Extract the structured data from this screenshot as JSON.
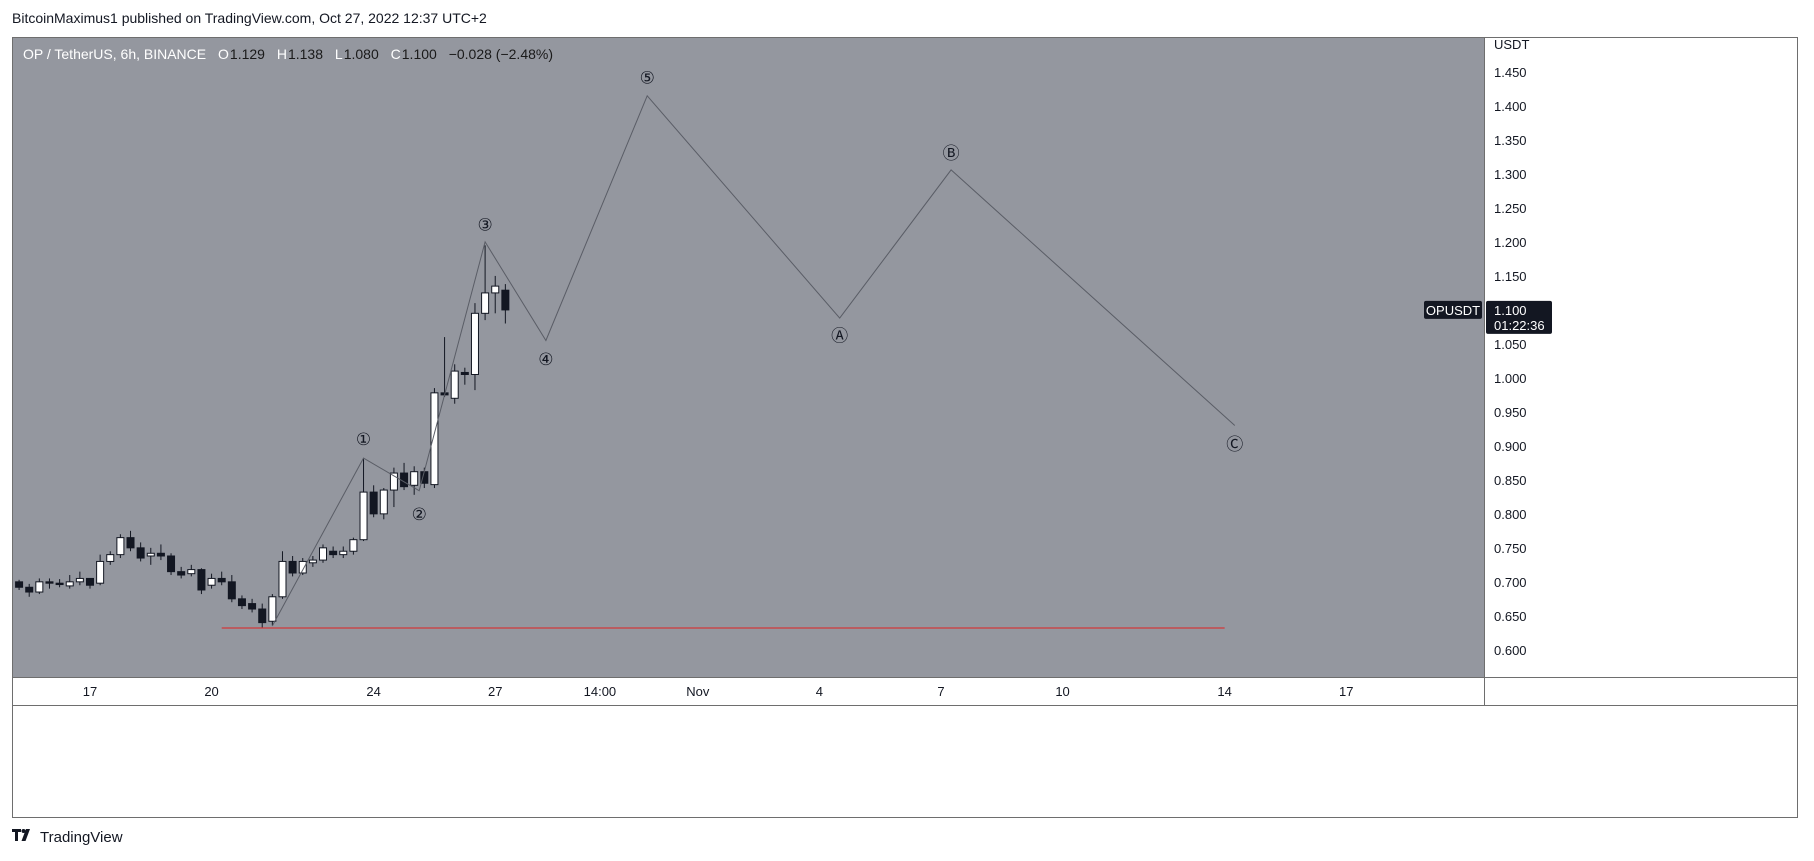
{
  "header": {
    "published_text": "BitcoinMaximus1 published on TradingView.com, Oct 27, 2022 12:37 UTC+2"
  },
  "footer": {
    "brand": "TradingView",
    "logo_icon": "tradingview-logo-icon"
  },
  "legend": {
    "symbol": "OP / TetherUS, 6h, BINANCE",
    "open_label": "O",
    "open": "1.129",
    "high_label": "H",
    "high": "1.138",
    "low_label": "L",
    "low": "1.080",
    "close_label": "C",
    "close": "1.100",
    "change": "−0.028 (−2.48%)"
  },
  "colors": {
    "background": "#94979f",
    "axis_background": "#ffffff",
    "up_candle": "#ffffff",
    "down_candle": "#131722",
    "wave_line": "#5a5d66",
    "support_line": "#e02020",
    "price_tag": "#131722"
  },
  "chart_data": {
    "type": "candlestick",
    "symbol": "OPUSDT",
    "timeframe": "6h",
    "y_unit": "USDT",
    "ylim": [
      0.56,
      1.5
    ],
    "y_ticks": [
      "1.450",
      "1.400",
      "1.350",
      "1.300",
      "1.250",
      "1.200",
      "1.150",
      "1.100",
      "1.050",
      "1.000",
      "0.950",
      "0.900",
      "0.850",
      "0.800",
      "0.750",
      "0.700",
      "0.650",
      "0.600"
    ],
    "x_ticks": [
      "17",
      "20",
      "24",
      "27",
      "14:00",
      "Nov",
      "4",
      "7",
      "10",
      "14",
      "17"
    ],
    "x_tick_days": [
      17,
      20,
      24,
      27,
      29.583,
      32,
      35,
      38,
      41,
      45,
      48
    ],
    "x_range_days": [
      15.1,
      51.4
    ],
    "current_price_tag": {
      "label": "OPUSDT",
      "price": "1.100",
      "countdown": "01:22:36",
      "value": 1.1
    },
    "candles": [
      [
        15.25,
        0.7,
        0.703,
        0.688,
        0.692
      ],
      [
        15.5,
        0.692,
        0.697,
        0.678,
        0.685
      ],
      [
        15.75,
        0.685,
        0.705,
        0.682,
        0.7
      ],
      [
        16.0,
        0.7,
        0.705,
        0.69,
        0.698
      ],
      [
        16.25,
        0.698,
        0.704,
        0.692,
        0.696
      ],
      [
        16.5,
        0.694,
        0.71,
        0.69,
        0.7
      ],
      [
        16.75,
        0.7,
        0.715,
        0.695,
        0.705
      ],
      [
        17.0,
        0.705,
        0.7,
        0.69,
        0.695
      ],
      [
        17.25,
        0.698,
        0.74,
        0.695,
        0.73
      ],
      [
        17.5,
        0.73,
        0.745,
        0.725,
        0.74
      ],
      [
        17.75,
        0.74,
        0.77,
        0.735,
        0.765
      ],
      [
        18.0,
        0.765,
        0.775,
        0.745,
        0.75
      ],
      [
        18.25,
        0.75,
        0.758,
        0.73,
        0.735
      ],
      [
        18.5,
        0.738,
        0.75,
        0.725,
        0.742
      ],
      [
        18.75,
        0.742,
        0.755,
        0.732,
        0.738
      ],
      [
        19.0,
        0.738,
        0.742,
        0.71,
        0.715
      ],
      [
        19.25,
        0.715,
        0.722,
        0.705,
        0.71
      ],
      [
        19.5,
        0.712,
        0.725,
        0.708,
        0.718
      ],
      [
        19.75,
        0.718,
        0.72,
        0.682,
        0.688
      ],
      [
        20.0,
        0.695,
        0.712,
        0.69,
        0.705
      ],
      [
        20.25,
        0.705,
        0.715,
        0.695,
        0.7
      ],
      [
        20.5,
        0.7,
        0.71,
        0.67,
        0.675
      ],
      [
        20.75,
        0.675,
        0.68,
        0.66,
        0.665
      ],
      [
        21.0,
        0.668,
        0.675,
        0.655,
        0.66
      ],
      [
        21.25,
        0.66,
        0.668,
        0.633,
        0.64
      ],
      [
        21.5,
        0.642,
        0.682,
        0.636,
        0.678
      ],
      [
        21.75,
        0.678,
        0.745,
        0.675,
        0.73
      ],
      [
        22.0,
        0.73,
        0.738,
        0.708,
        0.713
      ],
      [
        22.25,
        0.713,
        0.735,
        0.71,
        0.73
      ],
      [
        22.5,
        0.728,
        0.738,
        0.722,
        0.732
      ],
      [
        22.75,
        0.732,
        0.755,
        0.728,
        0.75
      ],
      [
        23.0,
        0.745,
        0.752,
        0.735,
        0.74
      ],
      [
        23.25,
        0.74,
        0.752,
        0.735,
        0.745
      ],
      [
        23.5,
        0.745,
        0.765,
        0.74,
        0.762
      ],
      [
        23.75,
        0.762,
        0.882,
        0.76,
        0.832
      ],
      [
        24.0,
        0.832,
        0.842,
        0.795,
        0.8
      ],
      [
        24.25,
        0.8,
        0.838,
        0.792,
        0.835
      ],
      [
        24.5,
        0.835,
        0.868,
        0.81,
        0.86
      ],
      [
        24.75,
        0.86,
        0.875,
        0.835,
        0.84
      ],
      [
        25.0,
        0.842,
        0.87,
        0.828,
        0.862
      ],
      [
        25.25,
        0.862,
        0.868,
        0.838,
        0.845
      ],
      [
        25.5,
        0.843,
        0.985,
        0.838,
        0.978
      ],
      [
        25.75,
        0.978,
        1.06,
        0.972,
        0.975
      ],
      [
        26.0,
        0.97,
        1.02,
        0.962,
        1.01
      ],
      [
        26.25,
        1.008,
        1.015,
        0.99,
        1.005
      ],
      [
        26.5,
        1.005,
        1.11,
        0.982,
        1.095
      ],
      [
        26.75,
        1.095,
        1.195,
        1.085,
        1.125
      ],
      [
        27.0,
        1.125,
        1.15,
        1.095,
        1.135
      ],
      [
        27.25,
        1.129,
        1.138,
        1.08,
        1.1
      ]
    ],
    "wave_path": [
      [
        21.5,
        0.635
      ],
      [
        23.75,
        0.882
      ],
      [
        25.125,
        0.834
      ],
      [
        26.75,
        1.2
      ],
      [
        28.25,
        1.055
      ],
      [
        30.75,
        1.415
      ],
      [
        35.5,
        1.088
      ],
      [
        38.25,
        1.306
      ],
      [
        45.25,
        0.93
      ]
    ],
    "wave_labels": [
      {
        "text": "①",
        "x": 23.75,
        "y": 0.91
      },
      {
        "text": "②",
        "x": 25.125,
        "y": 0.8
      },
      {
        "text": "③",
        "x": 26.75,
        "y": 1.226
      },
      {
        "text": "④",
        "x": 28.25,
        "y": 1.028
      },
      {
        "text": "⑤",
        "x": 30.75,
        "y": 1.442
      },
      {
        "text": "Ⓐ",
        "x": 35.5,
        "y": 1.062
      },
      {
        "text": "Ⓑ",
        "x": 38.25,
        "y": 1.331
      },
      {
        "text": "Ⓒ",
        "x": 45.25,
        "y": 0.903
      }
    ],
    "support_line": {
      "y": 0.632,
      "x_start": 20.25,
      "x_end": 45.0
    }
  }
}
